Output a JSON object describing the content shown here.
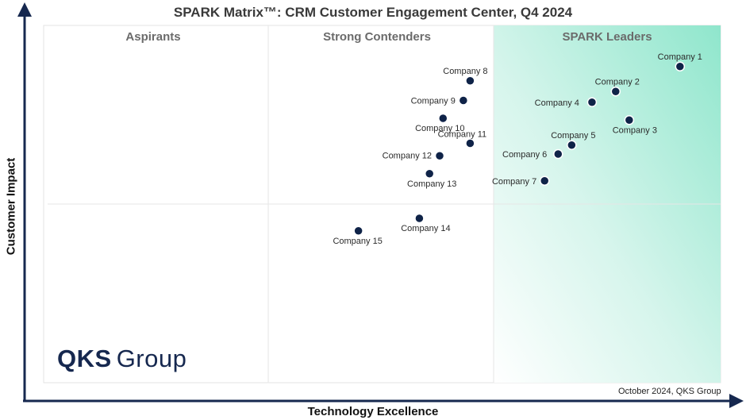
{
  "chart_data": {
    "type": "scatter",
    "title": "SPARK Matrix™: CRM Customer Engagement Center, Q4 2024",
    "xlabel": "Technology Excellence",
    "ylabel": "Customer Impact",
    "quadrants": [
      "Aspirants",
      "Strong Contenders",
      "SPARK Leaders"
    ],
    "points": [
      {
        "label": "Company 1",
        "x": 94,
        "y": 88.5
      },
      {
        "label": "Company 2",
        "x": 84.5,
        "y": 81.5
      },
      {
        "label": "Company 3",
        "x": 86.5,
        "y": 73.5
      },
      {
        "label": "Company 4",
        "x": 81,
        "y": 78.5
      },
      {
        "label": "Company 5",
        "x": 78,
        "y": 66.5
      },
      {
        "label": "Company 6",
        "x": 76,
        "y": 64
      },
      {
        "label": "Company 7",
        "x": 74,
        "y": 56.5
      },
      {
        "label": "Company 8",
        "x": 63,
        "y": 84.5
      },
      {
        "label": "Company 9",
        "x": 62,
        "y": 79
      },
      {
        "label": "Company 10",
        "x": 59,
        "y": 74
      },
      {
        "label": "Company 11",
        "x": 63,
        "y": 67
      },
      {
        "label": "Company 12",
        "x": 58.5,
        "y": 63.5
      },
      {
        "label": "Company 13",
        "x": 57,
        "y": 58.5
      },
      {
        "label": "Company 14",
        "x": 55.5,
        "y": 46
      },
      {
        "label": "Company 15",
        "x": 46.5,
        "y": 42.5
      }
    ],
    "xlim": [
      0,
      100
    ],
    "ylim": [
      0,
      100
    ],
    "grid": false
  },
  "branding": {
    "logo_bold": "QKS",
    "logo_regular": "Group",
    "footnote": "October 2024, QKS Group"
  },
  "colors": {
    "axis": "#16284f",
    "marker": "#0f2348",
    "leader_gradient": "#8fe6cc"
  }
}
